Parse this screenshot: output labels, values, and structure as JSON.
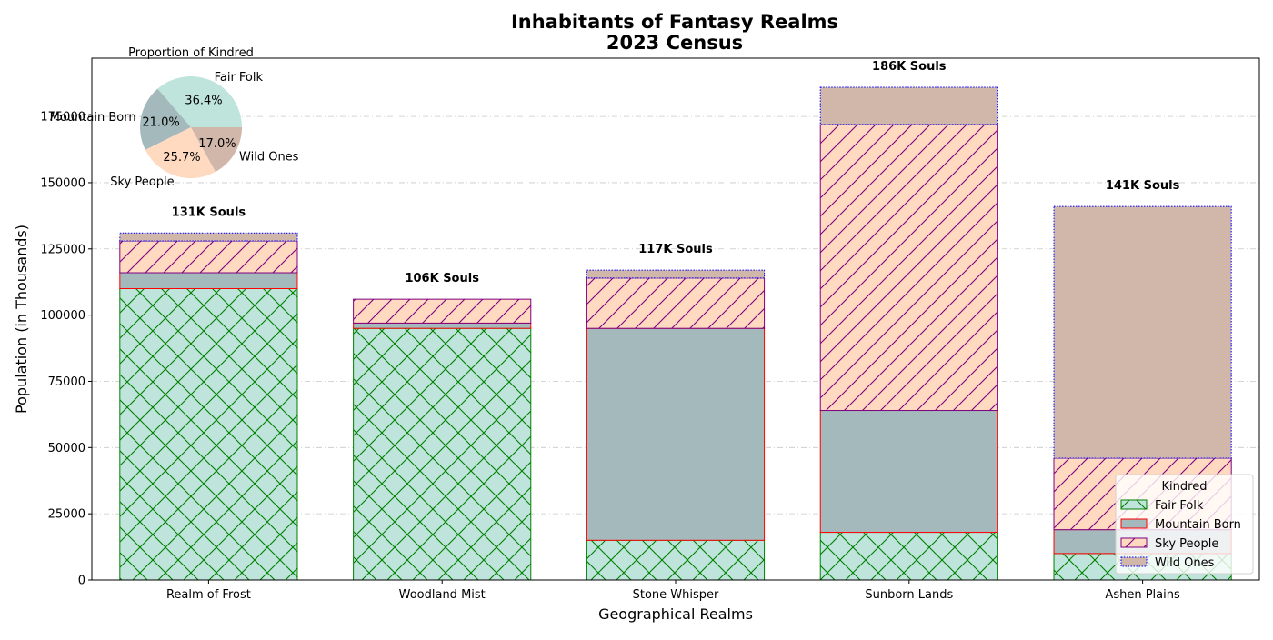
{
  "chart_data": [
    {
      "type": "bar",
      "stacked": true,
      "title": "Inhabitants of Fantasy Realms\n2023 Census",
      "xlabel": "Geographical Realms",
      "ylabel": "Population (in Thousands)",
      "ylim": [
        0,
        197000
      ],
      "yticks": [
        0,
        25000,
        50000,
        75000,
        100000,
        125000,
        150000,
        175000
      ],
      "grid": "y-dashdot",
      "categories": [
        "Realm of Frost",
        "Woodland Mist",
        "Stone Whisper",
        "Sunborn Lands",
        "Ashen Plains"
      ],
      "series": [
        {
          "name": "Fair Folk",
          "values": [
            110000,
            95000,
            15000,
            18000,
            10000
          ],
          "fill": "#bfe4dc",
          "edge": "#008000",
          "hatch": "cross"
        },
        {
          "name": "Mountain Born",
          "values": [
            6000,
            2000,
            80000,
            46000,
            9000
          ],
          "fill": "#a3b9bb",
          "edge": "#ff0000",
          "hatch": "none"
        },
        {
          "name": "Sky People",
          "values": [
            12000,
            9000,
            19000,
            108000,
            27000
          ],
          "fill": "#ffdac1",
          "edge": "#800080",
          "hatch": "diagonal"
        },
        {
          "name": "Wild Ones",
          "values": [
            3000,
            0,
            3000,
            14000,
            95000
          ],
          "fill": "#d1b6aa",
          "edge": "#0000ff",
          "hatch": "dotted-edge"
        }
      ],
      "totals_labels": [
        "131K Souls",
        "106K Souls",
        "117K Souls",
        "186K Souls",
        "141K Souls"
      ],
      "legend": {
        "title": "Kindred",
        "placement": "bottom-right",
        "entries": [
          "Fair Folk",
          "Mountain Born",
          "Sky People",
          "Wild Ones"
        ]
      }
    },
    {
      "type": "pie",
      "title": "Proportion of Kindred",
      "placement": "inset-top-left",
      "slices": [
        {
          "label": "Fair Folk",
          "value": 36.4,
          "pct_label": "36.4%",
          "color": "#bfe4dc"
        },
        {
          "label": "Mountain Born",
          "value": 21.0,
          "pct_label": "21.0%",
          "color": "#a3b9bb"
        },
        {
          "label": "Sky People",
          "value": 25.7,
          "pct_label": "25.7%",
          "color": "#ffdac1"
        },
        {
          "label": "Wild Ones",
          "value": 17.0,
          "pct_label": "17.0%",
          "color": "#d1b6aa"
        }
      ]
    }
  ]
}
